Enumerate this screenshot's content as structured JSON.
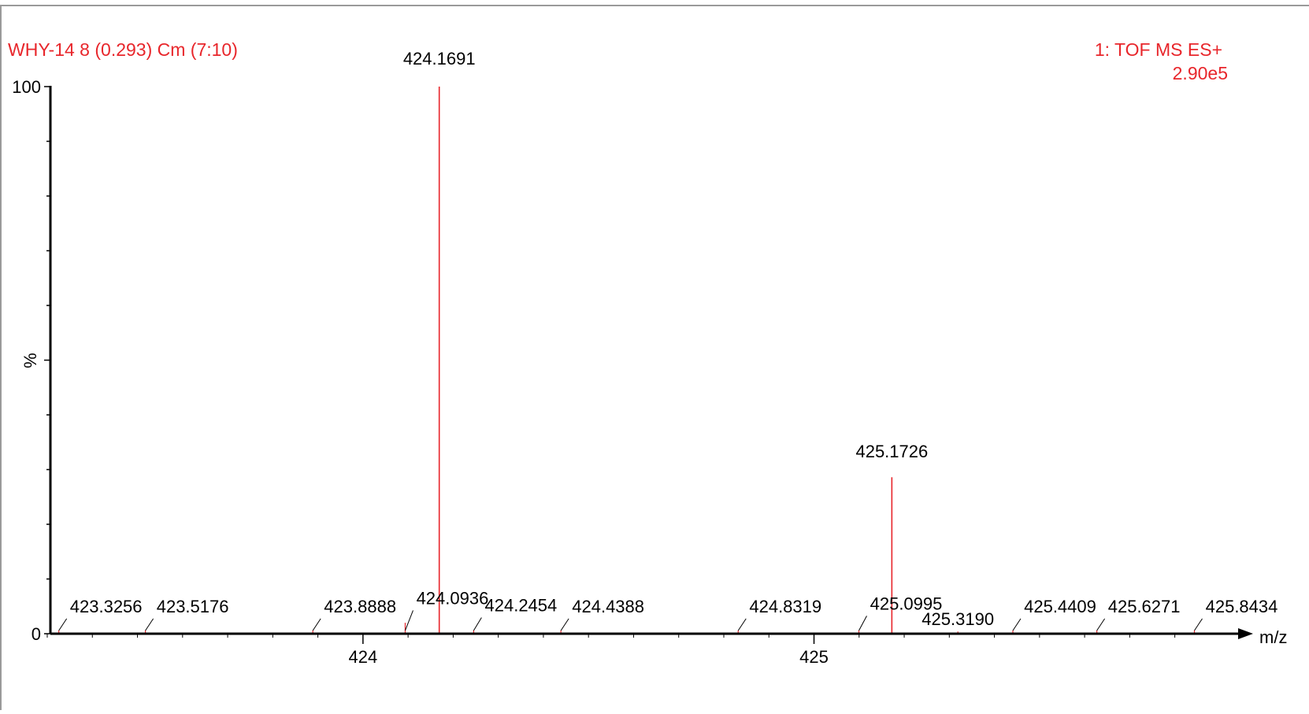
{
  "header": {
    "sample_label": "WHY-14 8 (0.293) Cm (7:10)",
    "function_label": "1: TOF MS ES+",
    "intensity_label": "2.90e5"
  },
  "colors": {
    "header_text": "#e8262b",
    "peak": "#e8262b",
    "axis": "#000000",
    "border": "#9a9a9a"
  },
  "chart_data": {
    "type": "bar",
    "title": "",
    "xlabel": "m/z",
    "ylabel": "%",
    "xlim": [
      423.3,
      425.86
    ],
    "ylim": [
      0,
      100
    ],
    "x_ticks": [
      424,
      425
    ],
    "y_ticks": [
      0,
      100
    ],
    "grid": false,
    "series": [
      {
        "peaks": [
          {
            "mz": 423.3256,
            "intensity": 0.6
          },
          {
            "mz": 423.5176,
            "intensity": 0.6
          },
          {
            "mz": 423.8888,
            "intensity": 0.6
          },
          {
            "mz": 424.0936,
            "intensity": 2.0
          },
          {
            "mz": 424.1691,
            "intensity": 100
          },
          {
            "mz": 424.2454,
            "intensity": 0.6
          },
          {
            "mz": 424.4388,
            "intensity": 0.6
          },
          {
            "mz": 424.8319,
            "intensity": 0.6
          },
          {
            "mz": 425.0995,
            "intensity": 0.6
          },
          {
            "mz": 425.1726,
            "intensity": 28.6
          },
          {
            "mz": 425.319,
            "intensity": 0.4
          },
          {
            "mz": 425.4409,
            "intensity": 0.6
          },
          {
            "mz": 425.6271,
            "intensity": 0.6
          },
          {
            "mz": 425.8434,
            "intensity": 0.6
          }
        ]
      }
    ],
    "labels": [
      {
        "text": "424.1691",
        "mz": 424.1691,
        "at": 104,
        "leader": false
      },
      {
        "text": "425.1726",
        "mz": 425.1726,
        "at": 32.2,
        "leader": false
      },
      {
        "text": "423.3256",
        "mz": 423.3256,
        "at": 3.9,
        "leader": true
      },
      {
        "text": "423.5176",
        "mz": 423.5176,
        "at": 3.9,
        "leader": true
      },
      {
        "text": "423.8888",
        "mz": 423.8888,
        "at": 3.9,
        "leader": true
      },
      {
        "text": "424.0936",
        "mz": 424.0936,
        "at": 5.4,
        "leader": true
      },
      {
        "text": "424.2454",
        "mz": 424.2454,
        "at": 4.1,
        "leader": true
      },
      {
        "text": "424.4388",
        "mz": 424.4388,
        "at": 3.9,
        "leader": true
      },
      {
        "text": "424.8319",
        "mz": 424.8319,
        "at": 3.9,
        "leader": true
      },
      {
        "text": "425.0995",
        "mz": 425.0995,
        "at": 4.4,
        "leader": true
      },
      {
        "text": "425.3190",
        "mz": 425.319,
        "at": 1.6,
        "leader": false
      },
      {
        "text": "425.4409",
        "mz": 425.4409,
        "at": 3.9,
        "leader": true
      },
      {
        "text": "425.6271",
        "mz": 425.6271,
        "at": 3.9,
        "leader": true
      },
      {
        "text": "425.8434",
        "mz": 425.8434,
        "at": 3.9,
        "leader": true
      }
    ]
  }
}
